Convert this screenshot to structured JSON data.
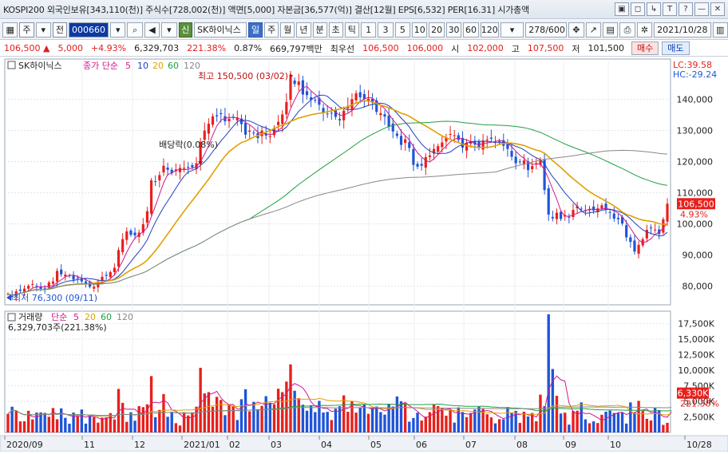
{
  "infobar": {
    "text": "KOSPI200 외국인보유[343,110(천)] 주식수[728,002(천)] 액면[5,000] 자본금[36,577(억)] 결산[12월] EPS[6,532] PER[16.31] 시가총액",
    "buttons": [
      "▣",
      "◻",
      "↳",
      "T",
      "?",
      "—",
      "✕"
    ]
  },
  "toolbar": {
    "market": "주",
    "prev": "전",
    "code": "000660",
    "sin_badge": "신",
    "stock_name": "SK하이닉스",
    "periods": [
      "일",
      "주",
      "월",
      "년",
      "분",
      "초",
      "틱"
    ],
    "active_period": "일",
    "intervals": [
      "1",
      "3",
      "5",
      "10",
      "20",
      "30",
      "60",
      "120"
    ],
    "bar_count": "278",
    "bar_total": "/600",
    "date": "2021/10/28"
  },
  "quote": {
    "price": "106,500",
    "change_arrow": "▲",
    "change": "5,000",
    "change_pct": "+4.93%",
    "volume": "6,329,703",
    "volume_ratio": "221.38%",
    "turnover": "0.87%",
    "amount": "669,797백만",
    "bid_label": "최우선",
    "bid": "106,500",
    "ask": "106,000",
    "open_label": "시",
    "open": "102,000",
    "high_label": "고",
    "high": "107,500",
    "low_label": "저",
    "low": "101,500",
    "buy_label": "매수",
    "sell_label": "매도"
  },
  "chart_data": {
    "type": "line",
    "price_legend": {
      "name": "SK하이닉스",
      "ma_label": "종가 단순",
      "ma_periods": [
        "5",
        "10",
        "20",
        "60",
        "120"
      ],
      "ma_colors": [
        "#d01890",
        "#2040c0",
        "#e0a000",
        "#20a040",
        "#888888"
      ]
    },
    "lc": "LC:39.58",
    "hc": "HC:-29.24",
    "annotations": {
      "high": "최고 150,500 (03/02)",
      "low": "최저 76,300 (09/11)",
      "dividend": "배당락(0.08%)"
    },
    "y_ticks": [
      "140,000",
      "130,000",
      "120,000",
      "110,000",
      "100,000",
      "90,000",
      "80,000"
    ],
    "y_range": [
      74000,
      153000
    ],
    "current_price_label": "106,500",
    "current_pct_label": "4.93%",
    "x_ticks": [
      "2020/09",
      "11",
      "12",
      "2021/01",
      "02",
      "03",
      "04",
      "05",
      "06",
      "07",
      "08",
      "09",
      "10",
      "10/28"
    ],
    "closes": [
      77.5,
      76.5,
      78.3,
      78.5,
      79.2,
      80.1,
      80.7,
      79.9,
      79.1,
      78.9,
      81.2,
      81.5,
      84.9,
      83.8,
      83.7,
      83.2,
      82.1,
      82.6,
      81.5,
      80.9,
      79.8,
      79.8,
      81.5,
      83.0,
      83.3,
      84.5,
      85.9,
      91.6,
      95.1,
      97.6,
      96.5,
      96.3,
      97.2,
      99.9,
      104.1,
      114.0,
      113.7,
      115.7,
      118.7,
      117.4,
      116.4,
      117.5,
      118.0,
      118.0,
      118.0,
      118.2,
      119.5,
      126.4,
      130.0,
      132.2,
      134.6,
      134.6,
      135.3,
      133.0,
      133.8,
      134.3,
      134.2,
      132.1,
      128.7,
      130.0,
      129.2,
      127.6,
      130.0,
      128.4,
      128.2,
      130.8,
      132.8,
      135.2,
      139.2,
      147.2,
      145.0,
      145.8,
      141.6,
      141.4,
      139.9,
      139.8,
      138.3,
      135.8,
      135.4,
      135.7,
      134.4,
      133.3,
      136.4,
      137.9,
      140.1,
      142.0,
      140.7,
      140.2,
      140.2,
      139.0,
      136.0,
      135.6,
      134.5,
      131.3,
      129.7,
      128.3,
      125.4,
      127.2,
      124.4,
      119.0,
      118.4,
      118.7,
      121.5,
      122.0,
      124.1,
      125.0,
      126.2,
      127.7,
      128.9,
      128.5,
      127.0,
      124.5,
      126.1,
      126.3,
      125.5,
      124.5,
      126.8,
      127.1,
      127.4,
      126.6,
      126.6,
      125.1,
      124.1,
      121.6,
      119.5,
      120.0,
      120.4,
      117.3,
      118.6,
      119.6,
      120.6,
      110.9,
      103.0,
      101.8,
      103.6,
      101.6,
      102.8,
      102.2,
      104.5,
      105.7,
      104.7,
      104.1,
      104.8,
      104.3,
      105.0,
      106.0,
      104.6,
      103.6,
      101.7,
      101.5,
      100.1,
      95.7,
      94.2,
      91.1,
      93.3,
      95.1,
      98.1,
      98.6,
      98.2,
      96.7,
      101.5,
      106.5
    ],
    "volume_legend": {
      "name": "거래량",
      "ma_label": "단순",
      "ma_periods": [
        "5",
        "20",
        "60",
        "120"
      ]
    },
    "volume_value": "6,329,703주(221.38%)",
    "volume_y_ticks": [
      "17,500K",
      "15,000K",
      "12,500K",
      "10,000K",
      "7,500K",
      "5,000K",
      "2,500K"
    ],
    "volume_y_range": [
      0,
      19500
    ],
    "current_volume_label": "6,330K",
    "current_volume_pct": "221.38%",
    "volumes": [
      2980,
      4140,
      3450,
      1780,
      1800,
      3480,
      2110,
      3200,
      3230,
      3140,
      2520,
      3930,
      2120,
      3870,
      2350,
      1410,
      3200,
      2590,
      3690,
      1420,
      2590,
      2460,
      1580,
      2390,
      2430,
      3110,
      2090,
      7000,
      4760,
      1710,
      3250,
      1890,
      4230,
      4070,
      4530,
      9060,
      2450,
      3630,
      6170,
      2520,
      3330,
      1490,
      1120,
      3250,
      2740,
      3240,
      4140,
      10400,
      6280,
      6490,
      4120,
      5730,
      5230,
      2780,
      4540,
      4250,
      2010,
      5340,
      6950,
      3400,
      4920,
      3740,
      4270,
      5840,
      4760,
      4510,
      7030,
      6480,
      8180,
      10950,
      6710,
      5510,
      4460,
      3490,
      4380,
      3270,
      5070,
      3210,
      3310,
      2000,
      3820,
      4220,
      5960,
      3330,
      5060,
      3190,
      4020,
      4530,
      3000,
      3930,
      4170,
      3280,
      2870,
      4580,
      4160,
      5790,
      5020,
      4690,
      1730,
      2320,
      3180,
      1910,
      2540,
      3280,
      4470,
      4240,
      3930,
      2700,
      3600,
      1580,
      4030,
      3280,
      2450,
      3140,
      3690,
      4140,
      3770,
      2930,
      2420,
      1460,
      2140,
      2120,
      4070,
      3110,
      3470,
      1540,
      3340,
      2570,
      3130,
      1800,
      6080,
      4220,
      19000,
      10200,
      5890,
      3050,
      3180,
      1260,
      3470,
      3500,
      4830,
      2110,
      1480,
      1780,
      1520,
      2850,
      3340,
      3520,
      3130,
      3130,
      3180,
      1430,
      4830,
      3250,
      5080,
      3440,
      2200,
      1930,
      3960,
      3610,
      1220,
      1540,
      6330
    ]
  }
}
